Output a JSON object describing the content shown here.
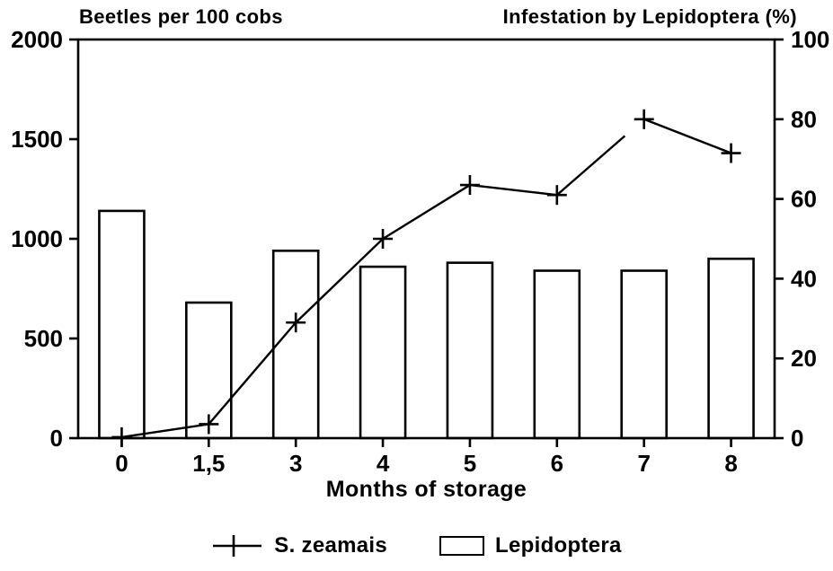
{
  "titles": {
    "left_axis_title": "Beetles per 100 cobs",
    "right_axis_title": "Infestation by Lepidoptera (%)",
    "x_axis_title": "Months of storage"
  },
  "colors": {
    "ink": "#000000",
    "paper": "#ffffff"
  },
  "chart_data": {
    "type": "bar+line",
    "title": "",
    "categories": [
      "0",
      "1,5",
      "3",
      "4",
      "5",
      "6",
      "7",
      "8"
    ],
    "x_numeric": [
      0,
      1.5,
      3,
      4,
      5,
      6,
      7,
      8
    ],
    "series": [
      {
        "name": "S. zeamais",
        "type": "line",
        "axis": "left",
        "marker": "plus",
        "values": [
          5,
          70,
          580,
          1000,
          1270,
          1220,
          1600,
          1430
        ]
      },
      {
        "name": "Lepidoptera",
        "type": "bar",
        "axis": "right",
        "fill": "white",
        "values": [
          57,
          34,
          47,
          43,
          44,
          42,
          42,
          45
        ]
      }
    ],
    "left_axis": {
      "label": "Beetles per 100 cobs",
      "ticks": [
        0,
        500,
        1000,
        1500,
        2000
      ],
      "range": [
        0,
        2000
      ]
    },
    "right_axis": {
      "label": "Infestation by Lepidoptera (%)",
      "ticks": [
        0,
        20,
        40,
        60,
        80,
        100
      ],
      "range": [
        0,
        100
      ]
    },
    "x_axis": {
      "label": "Months of storage",
      "tick_labels": [
        "0",
        "1,5",
        "3",
        "4",
        "5",
        "6",
        "7",
        "8"
      ]
    },
    "grid": false,
    "legend_position": "bottom-center",
    "legend_entries": [
      "S. zeamais",
      "Lepidoptera"
    ]
  }
}
